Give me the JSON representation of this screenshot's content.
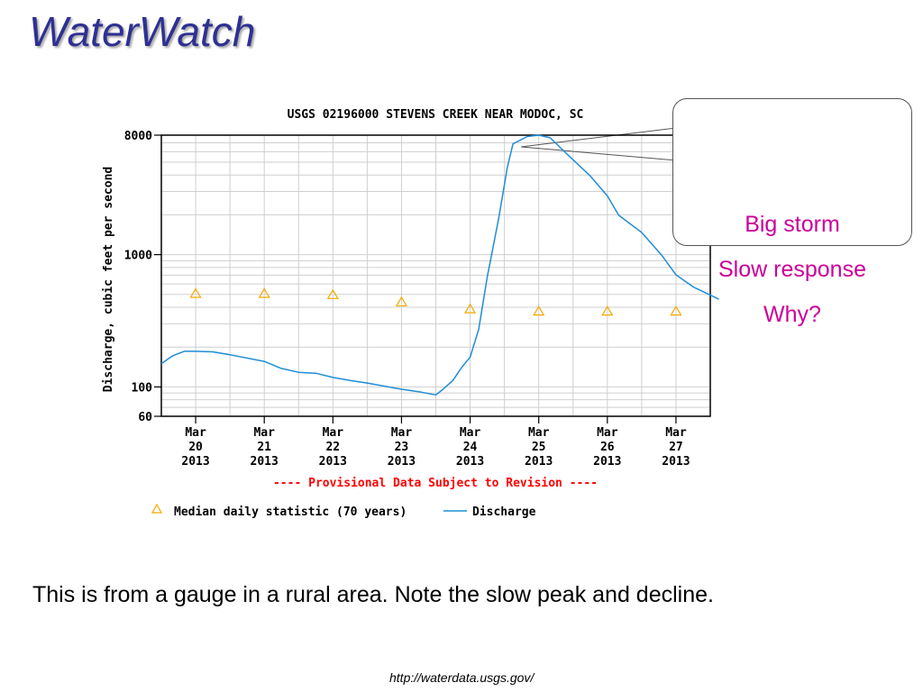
{
  "slide": {
    "title": "WaterWatch",
    "caption": "This is from a gauge in a rural area. Note the slow peak and decline.",
    "source_url": "http://waterdata.usgs.gov/"
  },
  "callout": {
    "lines": [
      "Big storm",
      "Slow response",
      "Why?"
    ],
    "color": "#cc0099"
  },
  "chart_data": {
    "type": "line",
    "title": "USGS 02196000 STEVENS CREEK NEAR MODOC, SC",
    "ylabel": "Discharge, cubic feet per second",
    "yscale": "log",
    "ylim": [
      60,
      8000
    ],
    "y_tick_labels": [
      "8000",
      "1000",
      "100",
      "60"
    ],
    "x_tick_labels": [
      [
        "Mar",
        "20",
        "2013"
      ],
      [
        "Mar",
        "21",
        "2013"
      ],
      [
        "Mar",
        "22",
        "2013"
      ],
      [
        "Mar",
        "23",
        "2013"
      ],
      [
        "Mar",
        "24",
        "2013"
      ],
      [
        "Mar",
        "25",
        "2013"
      ],
      [
        "Mar",
        "26",
        "2013"
      ],
      [
        "Mar",
        "27",
        "2013"
      ]
    ],
    "xlim": [
      "2013-03-19T12:00",
      "2013-03-27T12:00"
    ],
    "provisional_note": "---- Provisional Data Subject to Revision ----",
    "grid": true,
    "legend_position": "bottom",
    "series": [
      {
        "name": "Discharge",
        "kind": "line",
        "color": "#1f8dd6",
        "points": [
          [
            "2013-03-19T12:00",
            150
          ],
          [
            "2013-03-19T16:00",
            172
          ],
          [
            "2013-03-19T20:00",
            186
          ],
          [
            "2013-03-20T00:00",
            186
          ],
          [
            "2013-03-20T06:00",
            184
          ],
          [
            "2013-03-20T12:00",
            175
          ],
          [
            "2013-03-21T00:00",
            156
          ],
          [
            "2013-03-21T06:00",
            138
          ],
          [
            "2013-03-21T12:00",
            129
          ],
          [
            "2013-03-21T18:00",
            127
          ],
          [
            "2013-03-22T00:00",
            118
          ],
          [
            "2013-03-22T06:00",
            112
          ],
          [
            "2013-03-22T12:00",
            107
          ],
          [
            "2013-03-23T00:00",
            96
          ],
          [
            "2013-03-23T06:00",
            92
          ],
          [
            "2013-03-23T12:00",
            87
          ],
          [
            "2013-03-23T14:00",
            94
          ],
          [
            "2013-03-23T18:00",
            112
          ],
          [
            "2013-03-23T21:00",
            140
          ],
          [
            "2013-03-24T00:00",
            168
          ],
          [
            "2013-03-24T03:00",
            273
          ],
          [
            "2013-03-24T06:00",
            680
          ],
          [
            "2013-03-24T10:00",
            1885
          ],
          [
            "2013-03-24T13:00",
            4550
          ],
          [
            "2013-03-24T15:00",
            6870
          ],
          [
            "2013-03-24T20:00",
            7820
          ],
          [
            "2013-03-25T00:00",
            8000
          ],
          [
            "2013-03-25T04:00",
            7650
          ],
          [
            "2013-03-25T10:00",
            5720
          ],
          [
            "2013-03-25T18:00",
            3935
          ],
          [
            "2013-03-26T00:00",
            2780
          ],
          [
            "2013-03-26T04:00",
            1980
          ],
          [
            "2013-03-26T12:00",
            1470
          ],
          [
            "2013-03-26T19:00",
            990
          ],
          [
            "2013-03-27T00:00",
            705
          ],
          [
            "2013-03-27T06:00",
            570
          ],
          [
            "2013-03-27T12:00",
            495
          ],
          [
            "2013-03-27T15:00",
            460
          ]
        ]
      },
      {
        "name": "Median daily statistic (70 years)",
        "kind": "marker",
        "marker": "triangle",
        "color": "#f5a800",
        "points": [
          [
            "2013-03-20T00:00",
            510
          ],
          [
            "2013-03-21T00:00",
            510
          ],
          [
            "2013-03-22T00:00",
            500
          ],
          [
            "2013-03-23T00:00",
            440
          ],
          [
            "2013-03-24T00:00",
            390
          ],
          [
            "2013-03-25T00:00",
            375
          ],
          [
            "2013-03-26T00:00",
            375
          ],
          [
            "2013-03-27T00:00",
            375
          ]
        ]
      }
    ]
  }
}
